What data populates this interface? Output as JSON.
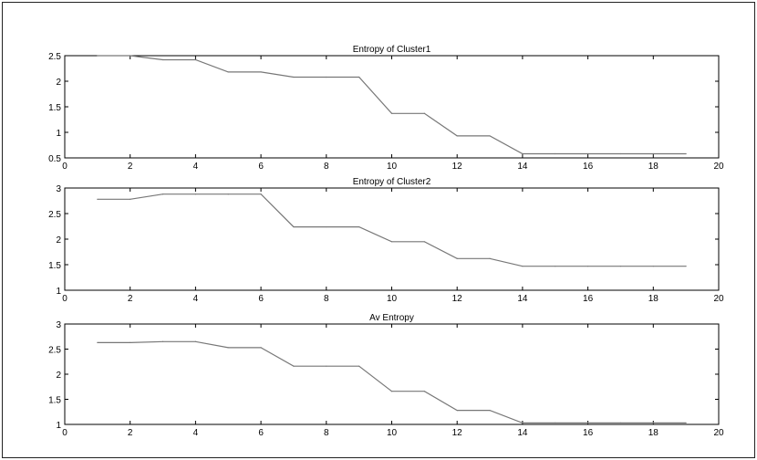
{
  "chart_data": [
    {
      "type": "line",
      "title": "Entropy of Cluster1",
      "xlabel": "",
      "ylabel": "",
      "xlim": [
        0,
        20
      ],
      "ylim": [
        0.5,
        2.5
      ],
      "xticks": [
        0,
        2,
        4,
        6,
        8,
        10,
        12,
        14,
        16,
        18,
        20
      ],
      "yticks": [
        0.5,
        1,
        1.5,
        2,
        2.5
      ],
      "xtick_labels": [
        "0",
        "2",
        "4",
        "6",
        "8",
        "10",
        "12",
        "14",
        "16",
        "18",
        "20"
      ],
      "ytick_labels": [
        "0.5",
        "1",
        "1.5",
        "2",
        "2.5"
      ],
      "grid": false,
      "series": [
        {
          "x": [
            1,
            2,
            3,
            4,
            5,
            6,
            7,
            8,
            9,
            10,
            11,
            12,
            13,
            14,
            15,
            16,
            17,
            18,
            19
          ],
          "values": [
            2.5,
            2.5,
            2.42,
            2.42,
            2.18,
            2.18,
            2.08,
            2.08,
            2.08,
            1.37,
            1.37,
            0.93,
            0.93,
            0.58,
            0.58,
            0.58,
            0.58,
            0.58,
            0.58
          ]
        }
      ]
    },
    {
      "type": "line",
      "title": "Entropy of Cluster2",
      "xlabel": "",
      "ylabel": "",
      "xlim": [
        0,
        20
      ],
      "ylim": [
        1,
        3
      ],
      "xticks": [
        0,
        2,
        4,
        6,
        8,
        10,
        12,
        14,
        16,
        18,
        20
      ],
      "yticks": [
        1,
        1.5,
        2,
        2.5,
        3
      ],
      "xtick_labels": [
        "0",
        "2",
        "4",
        "6",
        "8",
        "10",
        "12",
        "14",
        "16",
        "18",
        "20"
      ],
      "ytick_labels": [
        "1",
        "1.5",
        "2",
        "2.5",
        "3"
      ],
      "grid": false,
      "series": [
        {
          "x": [
            1,
            2,
            3,
            4,
            5,
            6,
            7,
            8,
            9,
            10,
            11,
            12,
            13,
            14,
            15,
            16,
            17,
            18,
            19
          ],
          "values": [
            2.78,
            2.78,
            2.88,
            2.88,
            2.88,
            2.88,
            2.24,
            2.24,
            2.24,
            1.95,
            1.95,
            1.62,
            1.62,
            1.47,
            1.47,
            1.47,
            1.47,
            1.47,
            1.47
          ]
        }
      ]
    },
    {
      "type": "line",
      "title": "Av Entropy",
      "xlabel": "",
      "ylabel": "",
      "xlim": [
        0,
        20
      ],
      "ylim": [
        1,
        3
      ],
      "xticks": [
        0,
        2,
        4,
        6,
        8,
        10,
        12,
        14,
        16,
        18,
        20
      ],
      "yticks": [
        1,
        1.5,
        2,
        2.5,
        3
      ],
      "xtick_labels": [
        "0",
        "2",
        "4",
        "6",
        "8",
        "10",
        "12",
        "14",
        "16",
        "18",
        "20"
      ],
      "ytick_labels": [
        "1",
        "1.5",
        "2",
        "2.5",
        "3"
      ],
      "grid": false,
      "series": [
        {
          "x": [
            1,
            2,
            3,
            4,
            5,
            6,
            7,
            8,
            9,
            10,
            11,
            12,
            13,
            14,
            15,
            16,
            17,
            18,
            19
          ],
          "values": [
            2.63,
            2.63,
            2.65,
            2.65,
            2.53,
            2.53,
            2.16,
            2.16,
            2.16,
            1.66,
            1.66,
            1.28,
            1.28,
            1.03,
            1.03,
            1.03,
            1.03,
            1.03,
            1.03
          ]
        }
      ]
    }
  ],
  "colors": {
    "line": "#777777",
    "axis": "#000000"
  }
}
